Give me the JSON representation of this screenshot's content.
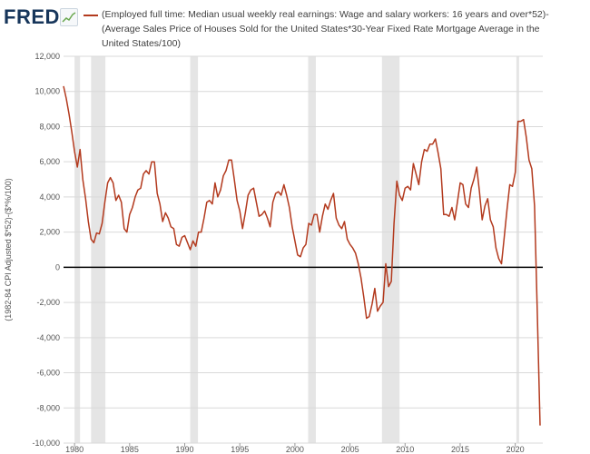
{
  "header": {
    "brand": "FRED",
    "brand_icon": "line-chart-icon",
    "legend": "(Employed full time: Median usual weekly real earnings: Wage and salary workers: 16 years and over*52)-(Average Sales Price of Houses Sold for the United States*30-Year Fixed Rate Mortgage Average in the United States/100)"
  },
  "colors": {
    "series": "#b33a1e",
    "recession": "#e5e5e5",
    "zero_line": "#000000",
    "grid": "#d9d9d9",
    "brand": "#17365b"
  },
  "chart_data": {
    "type": "line",
    "ylabel": "(1982-84 CPI Adjusted $*52)-($*%/100)",
    "ylim": [
      -10000,
      12000
    ],
    "xlim": [
      1979,
      2022.5
    ],
    "y_ticks": [
      12000,
      10000,
      8000,
      6000,
      4000,
      2000,
      0,
      -2000,
      -4000,
      -6000,
      -8000,
      -10000
    ],
    "y_tick_labels": [
      "12,000",
      "10,000",
      "8,000",
      "6,000",
      "4,000",
      "2,000",
      "0",
      "-2,000",
      "-4,000",
      "-6,000",
      "-8,000",
      "-10,000"
    ],
    "x_ticks": [
      1980,
      1985,
      1990,
      1995,
      2000,
      2005,
      2010,
      2015,
      2020
    ],
    "x_tick_labels": [
      "1980",
      "1985",
      "1990",
      "1995",
      "2000",
      "2005",
      "2010",
      "2015",
      "2020"
    ],
    "grid": "horizontal",
    "recessions": [
      [
        1980.0,
        1980.5
      ],
      [
        1981.5,
        1982.8
      ],
      [
        1990.5,
        1991.2
      ],
      [
        2001.2,
        2001.9
      ],
      [
        2007.9,
        2009.5
      ],
      [
        2020.1,
        2020.35
      ]
    ],
    "series": [
      {
        "points": [
          [
            1979.0,
            10300
          ],
          [
            1979.25,
            9600
          ],
          [
            1979.5,
            8700
          ],
          [
            1979.75,
            7700
          ],
          [
            1980.0,
            6600
          ],
          [
            1980.25,
            5700
          ],
          [
            1980.5,
            6700
          ],
          [
            1980.75,
            5000
          ],
          [
            1981.0,
            3900
          ],
          [
            1981.25,
            2600
          ],
          [
            1981.5,
            1600
          ],
          [
            1981.75,
            1400
          ],
          [
            1982.0,
            1950
          ],
          [
            1982.25,
            1900
          ],
          [
            1982.5,
            2500
          ],
          [
            1982.75,
            3700
          ],
          [
            1983.0,
            4800
          ],
          [
            1983.25,
            5100
          ],
          [
            1983.5,
            4800
          ],
          [
            1983.75,
            3800
          ],
          [
            1984.0,
            4100
          ],
          [
            1984.25,
            3700
          ],
          [
            1984.5,
            2200
          ],
          [
            1984.75,
            2000
          ],
          [
            1985.0,
            3000
          ],
          [
            1985.25,
            3400
          ],
          [
            1985.5,
            4000
          ],
          [
            1985.75,
            4400
          ],
          [
            1986.0,
            4500
          ],
          [
            1986.25,
            5300
          ],
          [
            1986.5,
            5500
          ],
          [
            1986.75,
            5300
          ],
          [
            1987.0,
            6000
          ],
          [
            1987.25,
            6000
          ],
          [
            1987.5,
            4200
          ],
          [
            1987.75,
            3600
          ],
          [
            1988.0,
            2600
          ],
          [
            1988.25,
            3100
          ],
          [
            1988.5,
            2800
          ],
          [
            1988.75,
            2300
          ],
          [
            1989.0,
            2200
          ],
          [
            1989.25,
            1300
          ],
          [
            1989.5,
            1200
          ],
          [
            1989.75,
            1700
          ],
          [
            1990.0,
            1800
          ],
          [
            1990.25,
            1400
          ],
          [
            1990.5,
            1000
          ],
          [
            1990.75,
            1500
          ],
          [
            1991.0,
            1200
          ],
          [
            1991.25,
            2000
          ],
          [
            1991.5,
            2000
          ],
          [
            1991.75,
            2800
          ],
          [
            1992.0,
            3700
          ],
          [
            1992.25,
            3800
          ],
          [
            1992.5,
            3600
          ],
          [
            1992.75,
            4800
          ],
          [
            1993.0,
            4000
          ],
          [
            1993.25,
            4400
          ],
          [
            1993.5,
            5200
          ],
          [
            1993.75,
            5500
          ],
          [
            1994.0,
            6100
          ],
          [
            1994.25,
            6100
          ],
          [
            1994.5,
            5000
          ],
          [
            1994.75,
            3800
          ],
          [
            1995.0,
            3200
          ],
          [
            1995.25,
            2200
          ],
          [
            1995.5,
            3100
          ],
          [
            1995.75,
            4100
          ],
          [
            1996.0,
            4400
          ],
          [
            1996.25,
            4500
          ],
          [
            1996.5,
            3700
          ],
          [
            1996.75,
            2900
          ],
          [
            1997.0,
            3000
          ],
          [
            1997.25,
            3200
          ],
          [
            1997.5,
            2800
          ],
          [
            1997.75,
            2300
          ],
          [
            1998.0,
            3700
          ],
          [
            1998.25,
            4200
          ],
          [
            1998.5,
            4300
          ],
          [
            1998.75,
            4100
          ],
          [
            1999.0,
            4700
          ],
          [
            1999.25,
            4100
          ],
          [
            1999.5,
            3400
          ],
          [
            1999.75,
            2300
          ],
          [
            2000.0,
            1500
          ],
          [
            2000.25,
            700
          ],
          [
            2000.5,
            600
          ],
          [
            2000.75,
            1100
          ],
          [
            2001.0,
            1300
          ],
          [
            2001.25,
            2500
          ],
          [
            2001.5,
            2400
          ],
          [
            2001.75,
            3000
          ],
          [
            2002.0,
            3000
          ],
          [
            2002.25,
            2000
          ],
          [
            2002.5,
            2900
          ],
          [
            2002.75,
            3600
          ],
          [
            2003.0,
            3300
          ],
          [
            2003.25,
            3800
          ],
          [
            2003.5,
            4200
          ],
          [
            2003.75,
            2800
          ],
          [
            2004.0,
            2400
          ],
          [
            2004.25,
            2200
          ],
          [
            2004.5,
            2600
          ],
          [
            2004.75,
            1600
          ],
          [
            2005.0,
            1300
          ],
          [
            2005.25,
            1100
          ],
          [
            2005.5,
            800
          ],
          [
            2005.75,
            200
          ],
          [
            2006.0,
            -600
          ],
          [
            2006.25,
            -1700
          ],
          [
            2006.5,
            -2900
          ],
          [
            2006.75,
            -2800
          ],
          [
            2007.0,
            -2100
          ],
          [
            2007.25,
            -1200
          ],
          [
            2007.5,
            -2500
          ],
          [
            2007.75,
            -2200
          ],
          [
            2008.0,
            -2000
          ],
          [
            2008.25,
            200
          ],
          [
            2008.5,
            -1100
          ],
          [
            2008.75,
            -800
          ],
          [
            2009.0,
            2500
          ],
          [
            2009.25,
            4900
          ],
          [
            2009.5,
            4100
          ],
          [
            2009.75,
            3800
          ],
          [
            2010.0,
            4500
          ],
          [
            2010.25,
            4600
          ],
          [
            2010.5,
            4400
          ],
          [
            2010.75,
            5900
          ],
          [
            2011.0,
            5300
          ],
          [
            2011.25,
            4700
          ],
          [
            2011.5,
            6000
          ],
          [
            2011.75,
            6700
          ],
          [
            2012.0,
            6600
          ],
          [
            2012.25,
            7000
          ],
          [
            2012.5,
            7000
          ],
          [
            2012.75,
            7300
          ],
          [
            2013.0,
            6500
          ],
          [
            2013.25,
            5600
          ],
          [
            2013.5,
            3000
          ],
          [
            2013.75,
            3000
          ],
          [
            2014.0,
            2900
          ],
          [
            2014.25,
            3400
          ],
          [
            2014.5,
            2700
          ],
          [
            2014.75,
            3700
          ],
          [
            2015.0,
            4800
          ],
          [
            2015.25,
            4700
          ],
          [
            2015.5,
            3600
          ],
          [
            2015.75,
            3400
          ],
          [
            2016.0,
            4500
          ],
          [
            2016.25,
            5000
          ],
          [
            2016.5,
            5700
          ],
          [
            2016.75,
            4300
          ],
          [
            2017.0,
            2700
          ],
          [
            2017.25,
            3500
          ],
          [
            2017.5,
            3900
          ],
          [
            2017.75,
            2700
          ],
          [
            2018.0,
            2300
          ],
          [
            2018.25,
            1100
          ],
          [
            2018.5,
            500
          ],
          [
            2018.75,
            200
          ],
          [
            2019.0,
            1700
          ],
          [
            2019.25,
            3300
          ],
          [
            2019.5,
            4700
          ],
          [
            2019.75,
            4600
          ],
          [
            2020.0,
            5400
          ],
          [
            2020.25,
            8300
          ],
          [
            2020.5,
            8300
          ],
          [
            2020.75,
            8400
          ],
          [
            2021.0,
            7400
          ],
          [
            2021.25,
            6100
          ],
          [
            2021.5,
            5600
          ],
          [
            2021.75,
            3500
          ],
          [
            2022.0,
            -2500
          ],
          [
            2022.25,
            -9000
          ]
        ]
      }
    ]
  }
}
